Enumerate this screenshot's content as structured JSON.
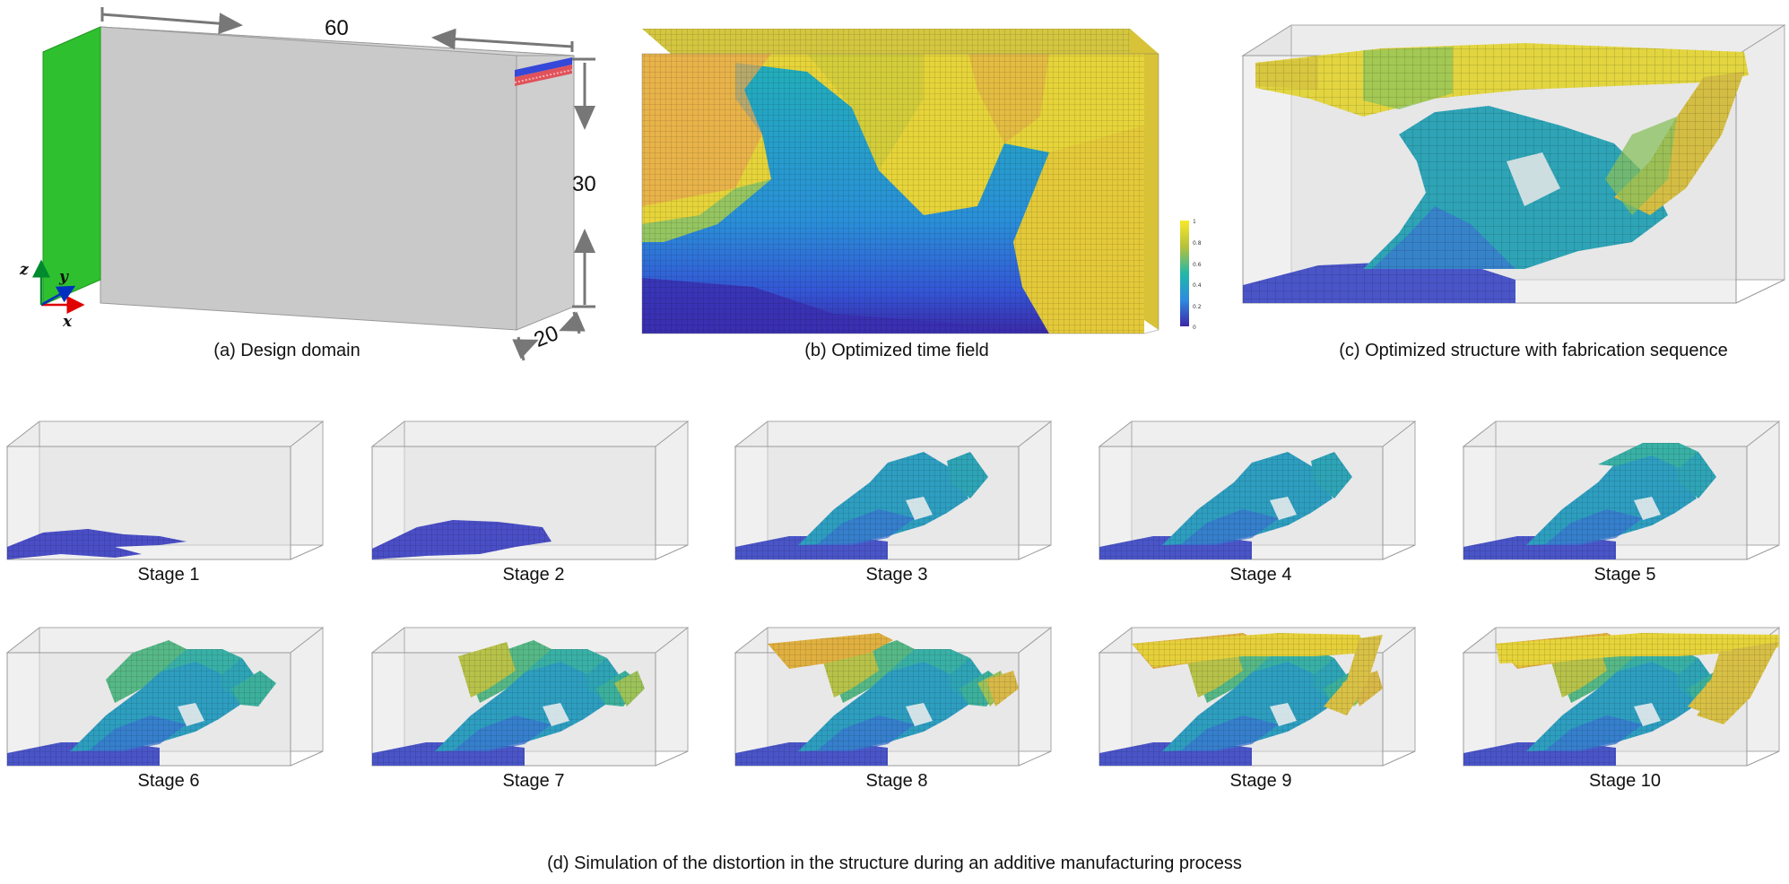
{
  "panel_a": {
    "caption": "(a) Design domain",
    "dim_length": "60",
    "dim_height": "30",
    "dim_depth": "20",
    "axis_x": "x",
    "axis_y": "y",
    "axis_z": "z"
  },
  "panel_b": {
    "caption": "(b) Optimized time field",
    "colorbar_ticks": [
      "1",
      "0.8",
      "0.6",
      "0.4",
      "0.2",
      "0"
    ]
  },
  "panel_c": {
    "caption": "(c) Optimized structure with fabrication sequence"
  },
  "panel_d": {
    "caption": "(d) Simulation of the distortion in the structure during an additive manufacturing process",
    "stages": [
      {
        "label": "Stage 1",
        "level": 1
      },
      {
        "label": "Stage 2",
        "level": 2
      },
      {
        "label": "Stage 3",
        "level": 3
      },
      {
        "label": "Stage 4",
        "level": 4
      },
      {
        "label": "Stage 5",
        "level": 5
      },
      {
        "label": "Stage 6",
        "level": 6
      },
      {
        "label": "Stage 7",
        "level": 7
      },
      {
        "label": "Stage 8",
        "level": 8
      },
      {
        "label": "Stage 9",
        "level": 9
      },
      {
        "label": "Stage 10",
        "level": 10
      }
    ]
  },
  "colors": {
    "fixed_face": "#2fc02f",
    "domain_gray": "#c8c8c8",
    "load_red": "#e0525a",
    "load_blue": "#3548d8",
    "axis_x": "#e00000",
    "axis_y": "#0030c0",
    "axis_z": "#008a2e",
    "parula_low": "#3e3ec8",
    "parula_mid": "#25b0b0",
    "parula_high": "#f4e440"
  }
}
